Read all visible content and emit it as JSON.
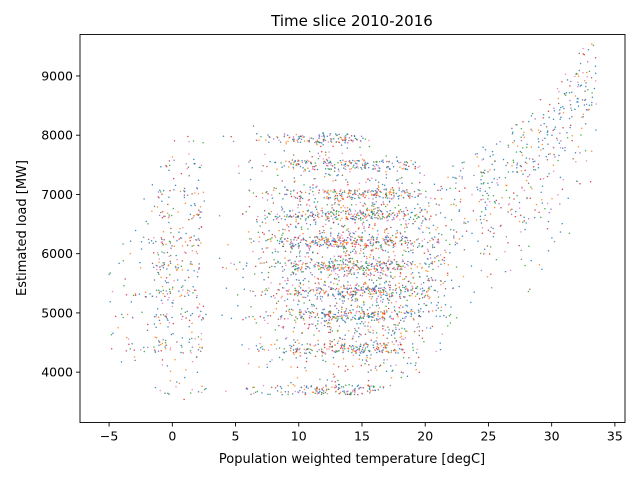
{
  "chart_data": {
    "type": "scatter",
    "title": "Time slice 2010-2016",
    "xlabel": "Population weighted temperature [degC]",
    "ylabel": "Estimated load [MW]",
    "xlim": [
      -7.3,
      35.8
    ],
    "ylim": [
      3150,
      9700
    ],
    "xticks": [
      -5,
      0,
      5,
      10,
      15,
      20,
      25,
      30,
      35
    ],
    "yticks": [
      4000,
      5000,
      6000,
      7000,
      8000,
      9000
    ],
    "grid": false,
    "legend": "none",
    "marker_size": 0.5,
    "series_colors": [
      "#1f77b4",
      "#ff7f0e",
      "#2ca02c",
      "#d62728",
      "#9467bd",
      "#8c564b",
      "#e377c2"
    ],
    "load_bands": [
      3700,
      4400,
      4950,
      5350,
      5800,
      6200,
      6650,
      7000,
      7500,
      7950
    ],
    "profile": {
      "temperature": [
        -5,
        0,
        5,
        10,
        15,
        20,
        22,
        25,
        28,
        30,
        32,
        33
      ],
      "upper_load": [
        5800,
        7800,
        8200,
        8100,
        7900,
        7400,
        7400,
        7900,
        8300,
        8700,
        9300,
        9600
      ],
      "lower_load": [
        4300,
        3600,
        3600,
        3600,
        3700,
        4000,
        4400,
        5000,
        5400,
        5400,
        6800,
        7200
      ]
    }
  }
}
